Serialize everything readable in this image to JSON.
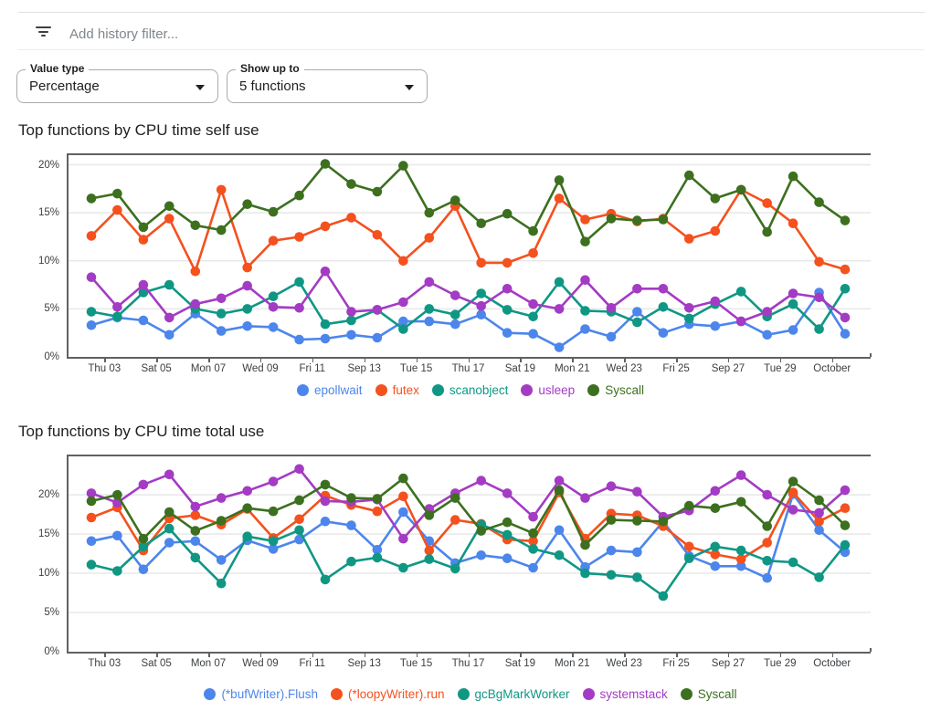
{
  "filter_bar": {
    "icon": "filter-list-icon",
    "placeholder": "Add history filter..."
  },
  "controls": {
    "value_type": {
      "label": "Value type",
      "value": "Percentage",
      "arrow_icon": "dropdown-arrow-icon"
    },
    "show_up_to": {
      "label": "Show up to",
      "value": "5 functions",
      "arrow_icon": "dropdown-arrow-icon"
    }
  },
  "chart_data": [
    {
      "type": "line",
      "title": "Top functions by CPU time self use",
      "xlabel": "",
      "ylabel": "",
      "x_tick_labels": [
        "Thu 03",
        "Sat 05",
        "Mon 07",
        "Wed 09",
        "Fri 11",
        "Sep 13",
        "Tue 15",
        "Thu 17",
        "Sat 19",
        "Mon 21",
        "Wed 23",
        "Fri 25",
        "Sep 27",
        "Tue 29",
        "October"
      ],
      "y_tick_labels": [
        "0%",
        "5%",
        "10%",
        "15%",
        "20%"
      ],
      "y_tick_values": [
        0,
        5,
        10,
        15,
        20
      ],
      "ylim": [
        0,
        21
      ],
      "grid": true,
      "legend_position": "bottom",
      "series": [
        {
          "name": "epollwait",
          "color": "#4c86ec",
          "values": [
            3.3,
            4.1,
            3.8,
            2.3,
            4.5,
            2.7,
            3.2,
            3.1,
            1.8,
            1.9,
            2.3,
            2.0,
            3.7,
            3.7,
            3.4,
            4.4,
            2.5,
            2.4,
            1.0,
            2.9,
            2.1,
            4.7,
            2.5,
            3.4,
            3.2,
            3.7,
            2.3,
            2.8,
            6.7,
            2.4
          ]
        },
        {
          "name": "futex",
          "color": "#f4511e",
          "values": [
            12.6,
            15.3,
            12.2,
            14.4,
            8.9,
            17.4,
            9.3,
            12.1,
            12.5,
            13.6,
            14.5,
            12.7,
            10.0,
            12.4,
            15.7,
            9.8,
            9.8,
            10.8,
            16.5,
            14.3,
            14.9,
            14.1,
            14.4,
            12.3,
            13.1,
            17.4,
            16.0,
            13.9,
            9.9,
            9.1
          ]
        },
        {
          "name": "scanobject",
          "color": "#0f9784",
          "values": [
            4.7,
            4.2,
            6.7,
            7.5,
            5.0,
            4.5,
            5.0,
            6.3,
            7.8,
            3.4,
            3.8,
            4.9,
            2.9,
            5.0,
            4.4,
            6.6,
            4.9,
            4.2,
            7.8,
            4.8,
            4.7,
            3.6,
            5.2,
            4.0,
            5.5,
            6.8,
            4.2,
            5.5,
            2.9,
            7.1
          ]
        },
        {
          "name": "usleep",
          "color": "#a43bc4",
          "values": [
            8.3,
            5.2,
            7.5,
            4.1,
            5.5,
            6.1,
            7.4,
            5.2,
            5.1,
            8.9,
            4.7,
            4.9,
            5.7,
            7.8,
            6.4,
            5.3,
            7.1,
            5.5,
            5.0,
            8.0,
            5.1,
            7.1,
            7.1,
            5.1,
            5.8,
            3.7,
            4.7,
            6.6,
            6.2,
            4.1
          ]
        },
        {
          "name": "Syscall",
          "color": "#3c701f",
          "values": [
            16.5,
            17.0,
            13.5,
            15.7,
            13.7,
            13.2,
            15.9,
            15.1,
            16.8,
            20.1,
            18.0,
            17.2,
            19.9,
            15.0,
            16.3,
            13.9,
            14.9,
            13.1,
            18.4,
            12.0,
            14.4,
            14.2,
            14.3,
            18.9,
            16.5,
            17.4,
            13.0,
            18.8,
            16.1,
            14.2
          ]
        }
      ]
    },
    {
      "type": "line",
      "title": "Top functions by CPU time total use",
      "xlabel": "",
      "ylabel": "",
      "x_tick_labels": [
        "Thu 03",
        "Sat 05",
        "Mon 07",
        "Wed 09",
        "Fri 11",
        "Sep 13",
        "Tue 15",
        "Thu 17",
        "Sat 19",
        "Mon 21",
        "Wed 23",
        "Fri 25",
        "Sep 27",
        "Tue 29",
        "October"
      ],
      "y_tick_labels": [
        "0%",
        "5%",
        "10%",
        "15%",
        "20%"
      ],
      "y_tick_values": [
        0,
        5,
        10,
        15,
        20
      ],
      "ylim": [
        0,
        24.9
      ],
      "grid": true,
      "legend_position": "bottom",
      "series": [
        {
          "name": "(*bufWriter).Flush",
          "color": "#4c86ec",
          "values": [
            14.1,
            14.8,
            10.5,
            13.9,
            14.1,
            11.7,
            14.2,
            13.1,
            14.3,
            16.6,
            16.1,
            13.0,
            17.8,
            14.1,
            11.3,
            12.3,
            11.9,
            10.7,
            15.5,
            10.8,
            12.9,
            12.7,
            16.6,
            12.2,
            10.9,
            10.9,
            9.4,
            20.1,
            15.5,
            12.7
          ]
        },
        {
          "name": "(*loopyWriter).run",
          "color": "#f4511e",
          "values": [
            17.1,
            18.4,
            12.9,
            17.0,
            17.4,
            16.2,
            18.2,
            14.5,
            16.9,
            19.9,
            18.7,
            17.9,
            19.8,
            12.9,
            16.8,
            16.3,
            14.3,
            14.1,
            20.3,
            14.4,
            17.6,
            17.4,
            16.0,
            13.4,
            12.4,
            11.8,
            13.9,
            20.3,
            16.6,
            18.3
          ]
        },
        {
          "name": "gcBgMarkWorker",
          "color": "#0f9784",
          "values": [
            11.1,
            10.3,
            13.4,
            15.7,
            12.0,
            8.7,
            14.7,
            14.1,
            15.5,
            9.2,
            11.5,
            12.0,
            10.7,
            11.8,
            10.6,
            16.2,
            14.9,
            13.1,
            12.3,
            10.0,
            9.8,
            9.5,
            7.1,
            11.9,
            13.4,
            12.9,
            11.6,
            11.4,
            9.5,
            13.6
          ]
        },
        {
          "name": "systemstack",
          "color": "#a43bc4",
          "values": [
            20.2,
            19.0,
            21.3,
            22.6,
            18.5,
            19.6,
            20.5,
            21.7,
            23.3,
            19.2,
            19.1,
            19.4,
            14.4,
            18.2,
            20.2,
            21.8,
            20.2,
            17.2,
            21.8,
            19.6,
            21.1,
            20.4,
            17.2,
            18.0,
            20.5,
            22.5,
            20.0,
            18.1,
            17.7,
            20.6
          ]
        },
        {
          "name": "Syscall",
          "color": "#3c701f",
          "values": [
            19.2,
            20.0,
            14.4,
            17.8,
            15.4,
            16.7,
            18.3,
            17.9,
            19.3,
            21.3,
            19.6,
            19.5,
            22.1,
            17.4,
            19.6,
            15.4,
            16.5,
            15.1,
            20.6,
            13.6,
            16.8,
            16.7,
            16.6,
            18.6,
            18.3,
            19.1,
            16.0,
            21.7,
            19.3,
            16.1
          ]
        }
      ]
    }
  ]
}
